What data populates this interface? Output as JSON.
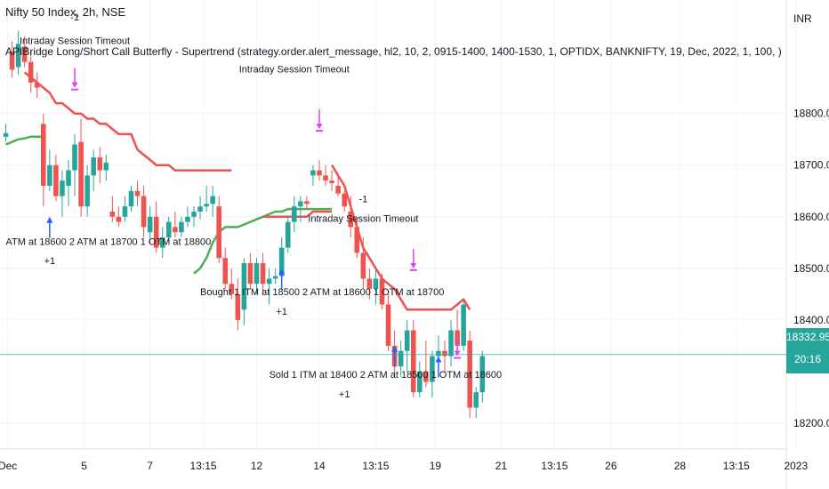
{
  "header": {
    "symbol": "Nifty 50 Index, 2h, NSE",
    "indicator": "APIBridge Long/Short Call Butterfly - Supertrend (strategy.order.alert_message, hl2, 10, 2, 0915-1400, 1400-1530, 1, OPTIDX, BANKNIFTY, 19, Dec, 2022, 1, 100, )",
    "currency": "INR"
  },
  "price_badge": {
    "value": "18332.95",
    "timer": "20:16"
  },
  "colors": {
    "up": "#26a69a",
    "down": "#ef5350",
    "trend_up": "#4caf50",
    "trend_down": "#f05050",
    "buy_arrow": "#2962ff",
    "exit_arrow": "#e040fb",
    "line": "#26a69a"
  },
  "chart_data": {
    "type": "candlestick",
    "ylim": [
      18150,
      19020
    ],
    "y_ticks": [
      "18800.00",
      "18700.00",
      "18600.00",
      "18500.00",
      "18400.00",
      "18200.00"
    ],
    "y_tick_values": [
      18800,
      18700,
      18600,
      18500,
      18400,
      18200
    ],
    "x_ticks": [
      "Dec",
      "5",
      "7",
      "13:15",
      "12",
      "14",
      "13:15",
      "19",
      "21",
      "13:15",
      "26",
      "28",
      "13:15",
      "2023"
    ],
    "x_tick_indices": [
      0.3,
      12.5,
      23,
      31.5,
      40,
      50,
      59,
      68.5,
      79,
      87.5,
      96.5,
      107.5,
      116.5,
      126
    ],
    "current_price": 18332.95,
    "candles": [
      {
        "o": 18755,
        "h": 18780,
        "l": 18745,
        "c": 18762
      },
      {
        "o": 18920,
        "h": 18940,
        "l": 18870,
        "c": 18885
      },
      {
        "o": 18890,
        "h": 18960,
        "l": 18875,
        "c": 18935
      },
      {
        "o": 18930,
        "h": 18950,
        "l": 18890,
        "c": 18900
      },
      {
        "o": 18900,
        "h": 18920,
        "l": 18840,
        "c": 18860
      },
      {
        "o": 18860,
        "h": 18880,
        "l": 18830,
        "c": 18850
      },
      {
        "o": 18780,
        "h": 18800,
        "l": 18620,
        "c": 18660
      },
      {
        "o": 18660,
        "h": 18730,
        "l": 18650,
        "c": 18700
      },
      {
        "o": 18700,
        "h": 18720,
        "l": 18630,
        "c": 18640
      },
      {
        "o": 18640,
        "h": 18690,
        "l": 18600,
        "c": 18670
      },
      {
        "o": 18660,
        "h": 18710,
        "l": 18620,
        "c": 18690
      },
      {
        "o": 18690,
        "h": 18760,
        "l": 18640,
        "c": 18740
      },
      {
        "o": 18745,
        "h": 18790,
        "l": 18600,
        "c": 18620
      },
      {
        "o": 18620,
        "h": 18700,
        "l": 18600,
        "c": 18680
      },
      {
        "o": 18680,
        "h": 18730,
        "l": 18650,
        "c": 18715
      },
      {
        "o": 18715,
        "h": 18735,
        "l": 18665,
        "c": 18690
      },
      {
        "o": 18690,
        "h": 18720,
        "l": 18670,
        "c": 18705
      },
      {
        "o": 18610,
        "h": 18640,
        "l": 18590,
        "c": 18600
      },
      {
        "o": 18600,
        "h": 18620,
        "l": 18580,
        "c": 18590
      },
      {
        "o": 18600,
        "h": 18640,
        "l": 18590,
        "c": 18620
      },
      {
        "o": 18620,
        "h": 18660,
        "l": 18610,
        "c": 18650
      },
      {
        "o": 18650,
        "h": 18670,
        "l": 18620,
        "c": 18640
      },
      {
        "o": 18640,
        "h": 18660,
        "l": 18560,
        "c": 18580
      },
      {
        "o": 18570,
        "h": 18620,
        "l": 18550,
        "c": 18600
      },
      {
        "o": 18600,
        "h": 18630,
        "l": 18530,
        "c": 18540
      },
      {
        "o": 18540,
        "h": 18580,
        "l": 18520,
        "c": 18560
      },
      {
        "o": 18560,
        "h": 18600,
        "l": 18550,
        "c": 18590
      },
      {
        "o": 18580,
        "h": 18610,
        "l": 18560,
        "c": 18570
      },
      {
        "o": 18570,
        "h": 18600,
        "l": 18560,
        "c": 18590
      },
      {
        "o": 18590,
        "h": 18620,
        "l": 18580,
        "c": 18600
      },
      {
        "o": 18600,
        "h": 18620,
        "l": 18580,
        "c": 18610
      },
      {
        "o": 18610,
        "h": 18640,
        "l": 18595,
        "c": 18620
      },
      {
        "o": 18620,
        "h": 18660,
        "l": 18610,
        "c": 18625
      },
      {
        "o": 18625,
        "h": 18660,
        "l": 18600,
        "c": 18640
      },
      {
        "o": 18620,
        "h": 18640,
        "l": 18510,
        "c": 18520
      },
      {
        "o": 18520,
        "h": 18540,
        "l": 18460,
        "c": 18470
      },
      {
        "o": 18470,
        "h": 18500,
        "l": 18440,
        "c": 18450
      },
      {
        "o": 18450,
        "h": 18480,
        "l": 18380,
        "c": 18400
      },
      {
        "o": 18420,
        "h": 18520,
        "l": 18390,
        "c": 18510
      },
      {
        "o": 18510,
        "h": 18530,
        "l": 18460,
        "c": 18470
      },
      {
        "o": 18470,
        "h": 18520,
        "l": 18450,
        "c": 18510
      },
      {
        "o": 18510,
        "h": 18530,
        "l": 18450,
        "c": 18470
      },
      {
        "o": 18470,
        "h": 18500,
        "l": 18430,
        "c": 18480
      },
      {
        "o": 18480,
        "h": 18500,
        "l": 18470,
        "c": 18485
      },
      {
        "o": 18485,
        "h": 18560,
        "l": 18470,
        "c": 18540
      },
      {
        "o": 18540,
        "h": 18600,
        "l": 18530,
        "c": 18590
      },
      {
        "o": 18590,
        "h": 18640,
        "l": 18570,
        "c": 18620
      },
      {
        "o": 18620,
        "h": 18640,
        "l": 18590,
        "c": 18630
      },
      {
        "o": 18630,
        "h": 18640,
        "l": 18615,
        "c": 18625
      },
      {
        "o": 18680,
        "h": 18700,
        "l": 18660,
        "c": 18690
      },
      {
        "o": 18690,
        "h": 18710,
        "l": 18670,
        "c": 18680
      },
      {
        "o": 18680,
        "h": 18700,
        "l": 18660,
        "c": 18670
      },
      {
        "o": 18670,
        "h": 18690,
        "l": 18650,
        "c": 18665
      },
      {
        "o": 18660,
        "h": 18680,
        "l": 18640,
        "c": 18645
      },
      {
        "o": 18645,
        "h": 18650,
        "l": 18610,
        "c": 18620
      },
      {
        "o": 18610,
        "h": 18640,
        "l": 18560,
        "c": 18580
      },
      {
        "o": 18580,
        "h": 18600,
        "l": 18520,
        "c": 18530
      },
      {
        "o": 18530,
        "h": 18560,
        "l": 18460,
        "c": 18480
      },
      {
        "o": 18480,
        "h": 18500,
        "l": 18440,
        "c": 18460
      },
      {
        "o": 18460,
        "h": 18500,
        "l": 18430,
        "c": 18480
      },
      {
        "o": 18480,
        "h": 18490,
        "l": 18420,
        "c": 18430
      },
      {
        "o": 18430,
        "h": 18450,
        "l": 18340,
        "c": 18350
      },
      {
        "o": 18350,
        "h": 18380,
        "l": 18290,
        "c": 18310
      },
      {
        "o": 18310,
        "h": 18360,
        "l": 18290,
        "c": 18340
      },
      {
        "o": 18340,
        "h": 18400,
        "l": 18300,
        "c": 18380
      },
      {
        "o": 18380,
        "h": 18400,
        "l": 18250,
        "c": 18260
      },
      {
        "o": 18260,
        "h": 18320,
        "l": 18250,
        "c": 18300
      },
      {
        "o": 18300,
        "h": 18360,
        "l": 18270,
        "c": 18280
      },
      {
        "o": 18280,
        "h": 18340,
        "l": 18250,
        "c": 18330
      },
      {
        "o": 18330,
        "h": 18370,
        "l": 18290,
        "c": 18340
      },
      {
        "o": 18340,
        "h": 18360,
        "l": 18300,
        "c": 18330
      },
      {
        "o": 18330,
        "h": 18400,
        "l": 18310,
        "c": 18380
      },
      {
        "o": 18380,
        "h": 18420,
        "l": 18340,
        "c": 18350
      },
      {
        "o": 18350,
        "h": 18440,
        "l": 18340,
        "c": 18430
      },
      {
        "o": 18360,
        "h": 18380,
        "l": 18210,
        "c": 18230
      },
      {
        "o": 18230,
        "h": 18270,
        "l": 18210,
        "c": 18260
      },
      {
        "o": 18260,
        "h": 18340,
        "l": 18240,
        "c": 18330
      }
    ],
    "supertrend": [
      {
        "from": 0,
        "to": 6,
        "values": [
          18740,
          18745,
          18750,
          18752,
          18755,
          18755,
          18755
        ],
        "dir": "up"
      },
      {
        "from": 3,
        "to": 36,
        "values": [
          18880,
          18870,
          18860,
          18850,
          18840,
          18820,
          18820,
          18810,
          18800,
          18800,
          18790,
          18790,
          18780,
          18780,
          18770,
          18760,
          18760,
          18760,
          18730,
          18720,
          18710,
          18700,
          18700,
          18700,
          18690,
          18690,
          18690,
          18690,
          18690,
          18690,
          18690,
          18690,
          18690,
          18690
        ],
        "dir": "down"
      },
      {
        "from": 30,
        "to": 52,
        "values": [
          18490,
          18500,
          18520,
          18550,
          18570,
          18580,
          18580,
          18580,
          18585,
          18590,
          18595,
          18600,
          18605,
          18610,
          18610,
          18615,
          18615,
          18615,
          18615,
          18615,
          18615,
          18615,
          18615
        ],
        "dir": "up"
      },
      {
        "from": 41,
        "to": 52,
        "values": [
          18600,
          18600,
          18600,
          18600,
          18600,
          18600,
          18600,
          18600,
          18610,
          18610,
          18610,
          18610
        ],
        "dir": "down"
      },
      {
        "from": 52,
        "to": 74,
        "values": [
          18700,
          18680,
          18660,
          18620,
          18580,
          18540,
          18520,
          18500,
          18480,
          18470,
          18460,
          18440,
          18420,
          18420,
          18420,
          18420,
          18420,
          18420,
          18420,
          18420,
          18430,
          18440,
          18420
        ],
        "dir": "down"
      }
    ],
    "markers": [
      {
        "type": "buy",
        "i": 7,
        "price": 18600
      },
      {
        "type": "exit",
        "i": 11,
        "price": 18850
      },
      {
        "type": "buy",
        "i": 44,
        "price": 18500
      },
      {
        "type": "exit",
        "i": 50,
        "price": 18770
      },
      {
        "type": "buy",
        "i": 62,
        "price": 18350
      },
      {
        "type": "exit",
        "i": 65,
        "price": 18500
      },
      {
        "type": "buy",
        "i": 69,
        "price": 18330
      },
      {
        "type": "exit",
        "i": 72,
        "price": 18330
      }
    ],
    "annotations": [
      {
        "text": "Intraday Session Timeout",
        "i": 11,
        "price": 18935,
        "anchor": "middle"
      },
      {
        "text": "-1",
        "i": 11,
        "price": 18980,
        "anchor": "middle"
      },
      {
        "text": "ATM at 18600 2 ATM at 18700 1 OTM at 18800",
        "i": 0,
        "price": 18545,
        "anchor": "start"
      },
      {
        "text": "+1",
        "i": 7,
        "price": 18508,
        "anchor": "middle"
      },
      {
        "text": "Intraday Session Timeout",
        "i": 46,
        "price": 18880,
        "anchor": "middle"
      },
      {
        "text": "-1",
        "i": 57,
        "price": 18628,
        "anchor": "middle"
      },
      {
        "text": "Intraday Session Timeout",
        "i": 57,
        "price": 18590,
        "anchor": "middle"
      },
      {
        "text": "Bought 1 ITM at 18500 2 ATM at 18600 1 OTM at 18700",
        "i": 31,
        "price": 18448,
        "anchor": "start"
      },
      {
        "text": "+1",
        "i": 44,
        "price": 18410,
        "anchor": "middle"
      },
      {
        "text": "Sold 1 ITM at 18400 2 ATM at 18500 1 OTM at 18600",
        "i": 42,
        "price": 18288,
        "anchor": "start"
      },
      {
        "text": "+1",
        "i": 54,
        "price": 18250,
        "anchor": "middle"
      }
    ]
  }
}
